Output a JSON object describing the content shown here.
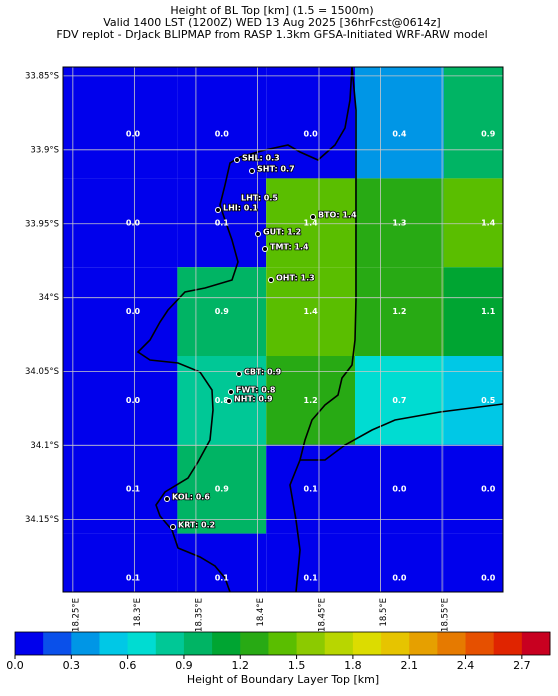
{
  "header": {
    "title_lines": [
      "Height of BL Top [km] (1.5 = 1500m)",
      "Valid 1400 LST (1200Z) WED 13 Aug 2025 [36hrFcst@0614z]",
      "FDV replot - DrJack BLIPMAP from RASP 1.3km GFSA-Initiated WRF-ARW model"
    ]
  },
  "map": {
    "ylim": [
      33.844,
      34.199
    ],
    "xlim": [
      18.242,
      18.5995
    ],
    "yticks": [
      {
        "value": 33.85,
        "label": "33.85°S"
      },
      {
        "value": 33.9,
        "label": "33.9°S"
      },
      {
        "value": 33.95,
        "label": "33.95°S"
      },
      {
        "value": 34,
        "label": "34°S"
      },
      {
        "value": 34.05,
        "label": "34.05°S"
      },
      {
        "value": 34.1,
        "label": "34.1°S"
      },
      {
        "value": 34.15,
        "label": "34.15°S"
      }
    ],
    "xticks": [
      {
        "value": 18.25,
        "label": "18.25°E"
      },
      {
        "value": 18.3,
        "label": "18.3°E"
      },
      {
        "value": 18.35,
        "label": "18.35°E"
      },
      {
        "value": 18.4,
        "label": "18.4°E"
      },
      {
        "value": 18.45,
        "label": "18.45°E"
      },
      {
        "value": 18.5,
        "label": "18.5°E"
      },
      {
        "value": 18.55,
        "label": "18.55°E"
      }
    ],
    "grid_values": [
      [
        {
          "value": 0,
          "label": "0.0"
        },
        {
          "value": 0,
          "label": "0.0"
        },
        {
          "value": 0,
          "label": "0.0"
        },
        0.4,
        0.9
      ],
      [
        {
          "value": 0,
          "label": "0.0"
        },
        0.1,
        1.4,
        1.3,
        1.4
      ],
      [
        {
          "value": 0,
          "label": "0.0"
        },
        0.9,
        1.4,
        1.2,
        1.1
      ],
      [
        {
          "value": 0,
          "label": "0.0"
        },
        0.8,
        1.2,
        0.7,
        0.5
      ],
      [
        0.1,
        0.9,
        0.1,
        {
          "value": 0,
          "label": "0.0"
        },
        {
          "value": 0,
          "label": "0.0"
        }
      ],
      [
        0.1,
        0.1,
        0.1,
        {
          "value": 0,
          "label": "0.0"
        },
        {
          "value": 0,
          "label": "0.0"
        }
      ]
    ],
    "stations": [
      "SHL: 0.3",
      "SHT: 0.7",
      "LHT: 0.5",
      "LHI: 0.1",
      "GUT: 1.2",
      "BTO: 1.4",
      "TMT: 1.4",
      "OHT: 1.3",
      "CBT: 0.9",
      "FWT: 0.8",
      "NHT: 0.9",
      "KOL: 0.6",
      "KRT: 0.2"
    ]
  },
  "colorbar": {
    "label": "Height of Boundary Layer Top [km]",
    "lim": [
      0,
      2.85
    ],
    "step": 0.15,
    "ticks": [
      {
        "value": 0,
        "label": "0.0"
      },
      0.3,
      0.6,
      0.9,
      1.2,
      1.5,
      1.8,
      2.1,
      2.4,
      2.7
    ],
    "colors": [
      "#0000ec",
      "#0a50ea",
      "#0096e6",
      "#00c8e6",
      "#00dcd2",
      "#00c896",
      "#00b464",
      "#00a532",
      "#28aa14",
      "#5abe00",
      "#8cca00",
      "#b8d600",
      "#dcdc00",
      "#e6c400",
      "#e6a000",
      "#e67a00",
      "#e65000",
      "#e02400",
      "#c80020"
    ]
  }
}
